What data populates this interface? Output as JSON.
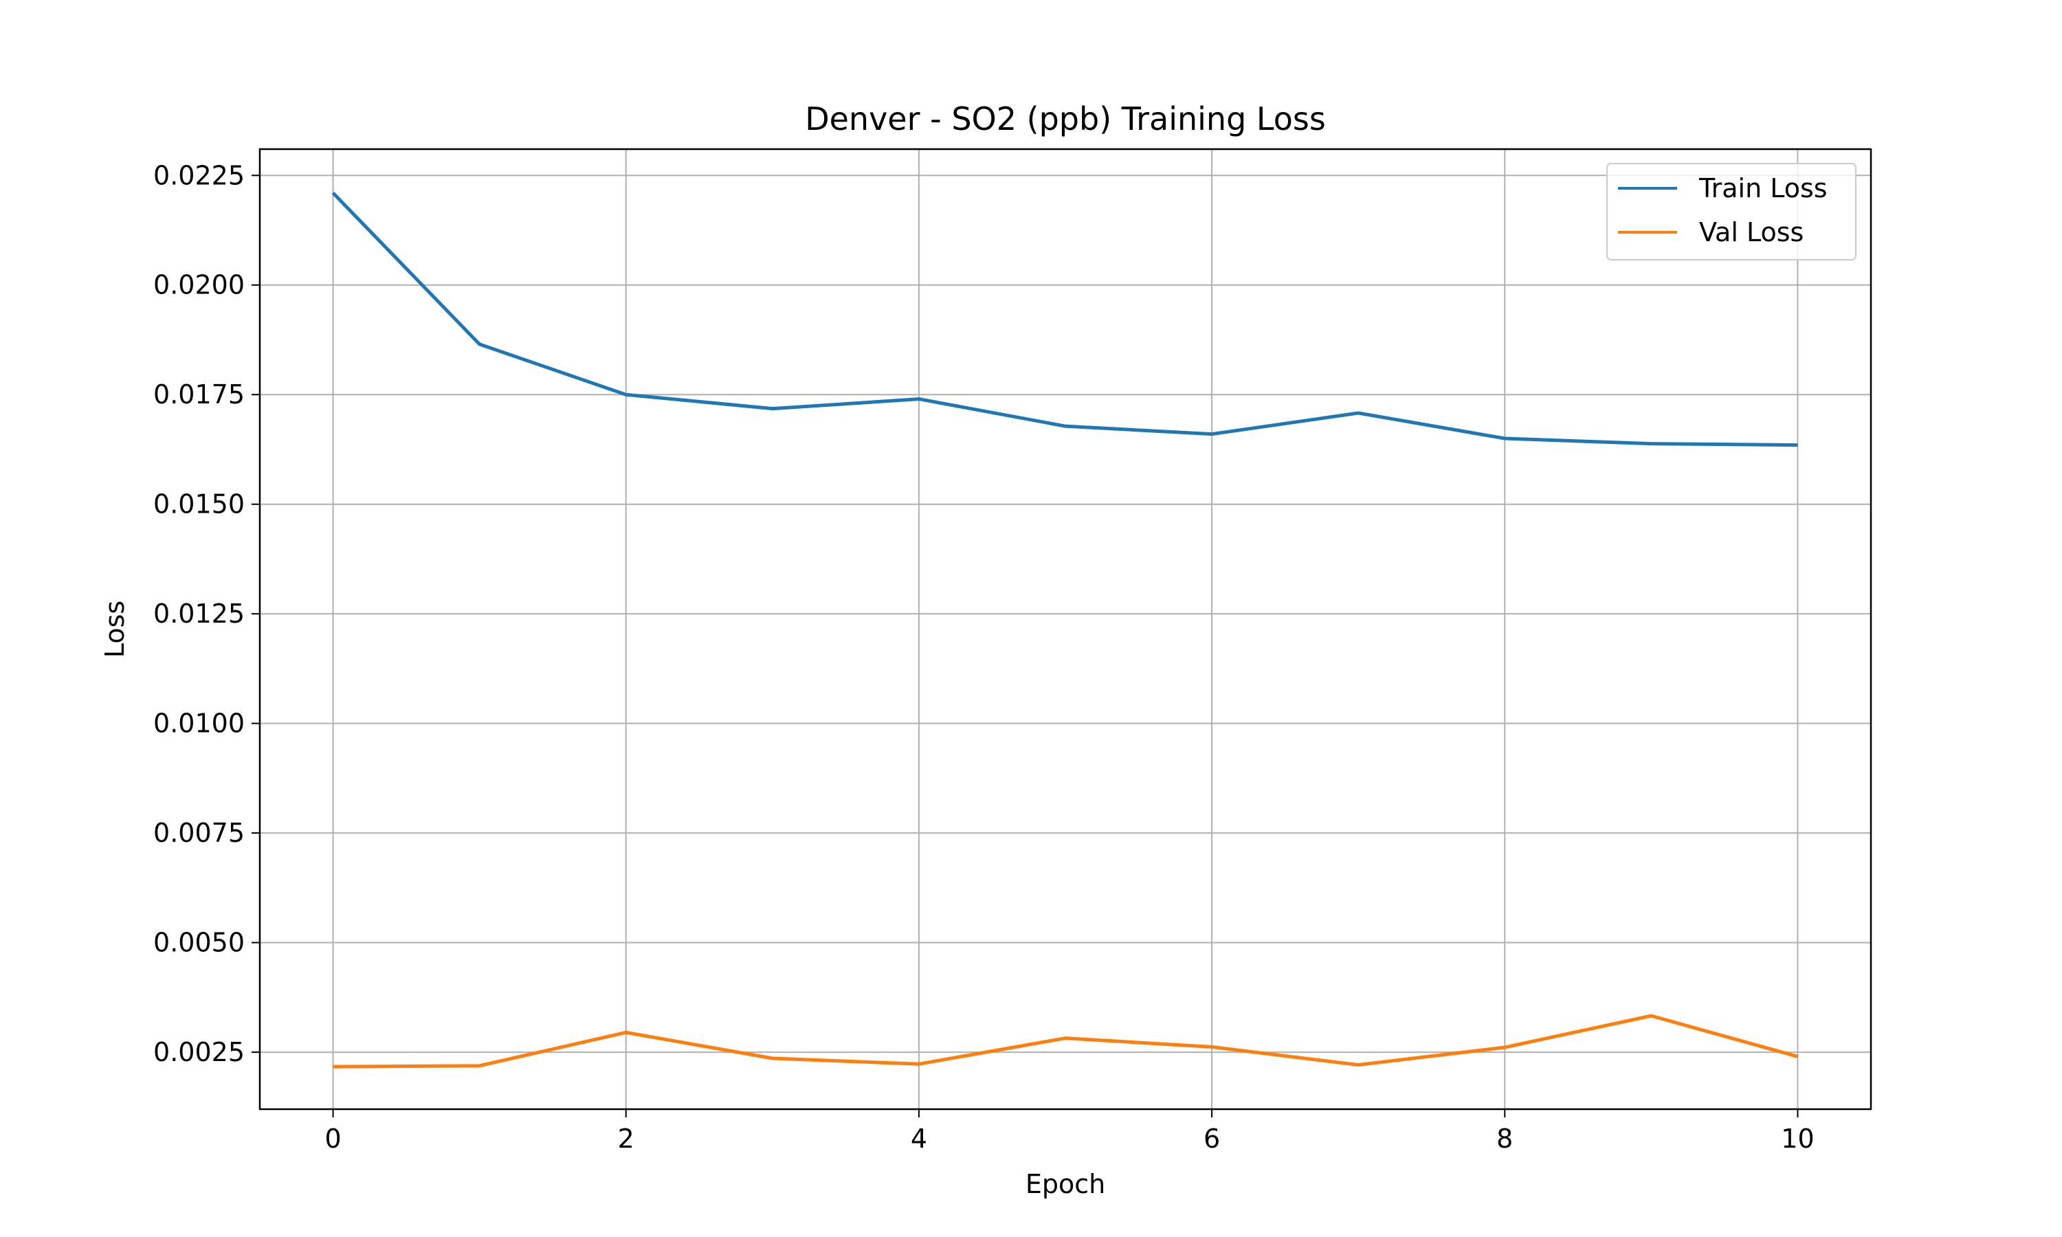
{
  "chart_data": {
    "type": "line",
    "title": "Denver - SO2 (ppb) Training Loss",
    "xlabel": "Epoch",
    "ylabel": "Loss",
    "x": [
      0,
      1,
      2,
      3,
      4,
      5,
      6,
      7,
      8,
      9,
      10
    ],
    "xlim": [
      -0.5,
      10.5
    ],
    "ylim": [
      0.0012,
      0.0231
    ],
    "xticks": [
      0,
      2,
      4,
      6,
      8,
      10
    ],
    "yticks": [
      0.0025,
      0.005,
      0.0075,
      0.01,
      0.0125,
      0.015,
      0.0175,
      0.02,
      0.0225
    ],
    "ytick_labels": [
      "0.0025",
      "0.0050",
      "0.0075",
      "0.0100",
      "0.0125",
      "0.0150",
      "0.0175",
      "0.0200",
      "0.0225"
    ],
    "grid": true,
    "legend_position": "top-right",
    "series": [
      {
        "name": "Train Loss",
        "color": "#1f77b4",
        "values": [
          0.0221,
          0.01865,
          0.0175,
          0.01718,
          0.0174,
          0.01678,
          0.0166,
          0.01708,
          0.0165,
          0.01638,
          0.01635
        ]
      },
      {
        "name": "Val Loss",
        "color": "#ff7f0e",
        "values": [
          0.00217,
          0.00219,
          0.00295,
          0.00236,
          0.00223,
          0.00282,
          0.00262,
          0.00221,
          0.00261,
          0.00333,
          0.0024
        ]
      }
    ]
  }
}
